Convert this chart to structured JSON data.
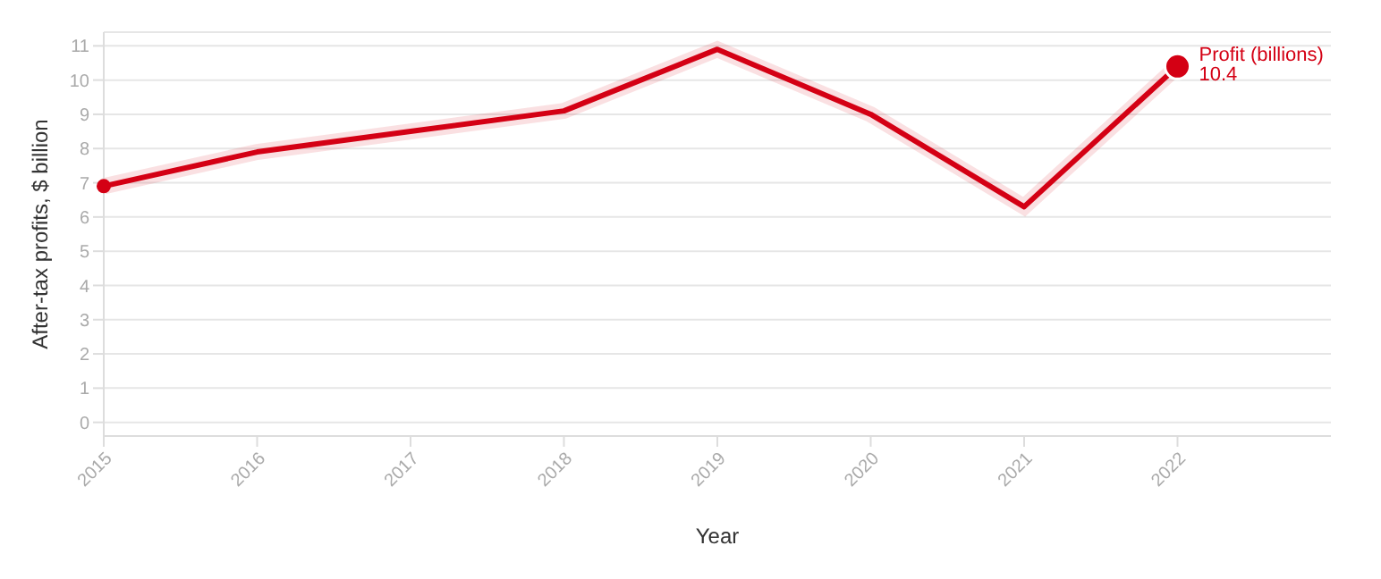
{
  "chart_data": {
    "type": "line",
    "xlabel": "Year",
    "ylabel": "After-tax profits, $ billion",
    "x": [
      2015,
      2016,
      2017,
      2018,
      2019,
      2020,
      2021,
      2022
    ],
    "series": [
      {
        "name": "Profit (billions)",
        "color": "#d40014",
        "values": [
          6.9,
          7.9,
          8.5,
          9.1,
          10.9,
          9.0,
          6.3,
          10.4
        ],
        "value_labels": [
          null,
          null,
          null,
          null,
          null,
          null,
          null,
          "10.4"
        ]
      }
    ],
    "xlim": [
      2015,
      2023
    ],
    "xticks": [
      2015,
      2016,
      2017,
      2018,
      2019,
      2020,
      2021,
      2022
    ],
    "ylim": [
      -0.4,
      11.4
    ],
    "yticks": [
      0,
      1,
      2,
      3,
      4,
      5,
      6,
      7,
      8,
      9,
      10,
      11
    ],
    "grid": "y",
    "legend": false
  }
}
